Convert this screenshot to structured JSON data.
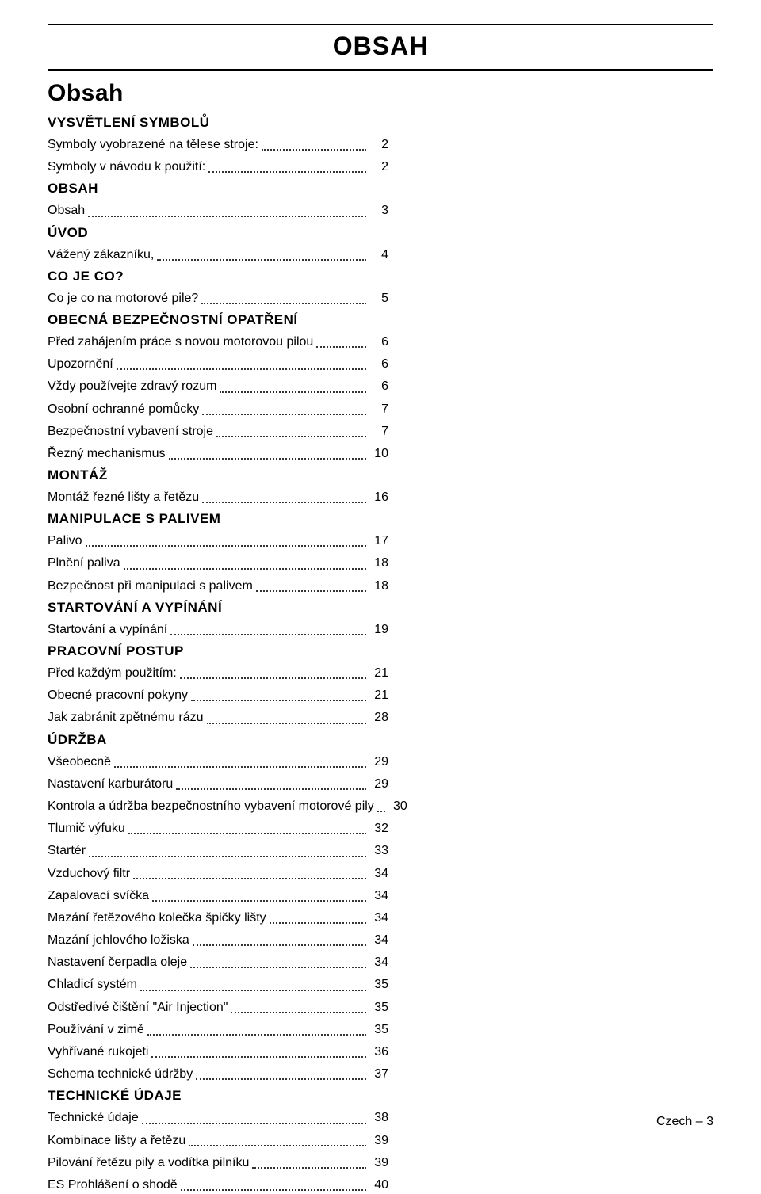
{
  "header_title": "OBSAH",
  "main_title": "Obsah",
  "footer_text": "Czech – 3",
  "sections": [
    {
      "title": "VYSVĚTLENÍ SYMBOLŮ",
      "entries": [
        {
          "label": "Symboly vyobrazené na tělese stroje:",
          "page": "2"
        },
        {
          "label": "Symboly v návodu k použití:",
          "page": "2"
        }
      ]
    },
    {
      "title": "OBSAH",
      "entries": [
        {
          "label": "Obsah",
          "page": "3"
        }
      ]
    },
    {
      "title": "ÚVOD",
      "entries": [
        {
          "label": "Vážený zákazníku,",
          "page": "4"
        }
      ]
    },
    {
      "title": "CO JE CO?",
      "entries": [
        {
          "label": "Co je co na motorové pile?",
          "page": "5"
        }
      ]
    },
    {
      "title": "OBECNÁ BEZPEČNOSTNÍ OPATŘENÍ",
      "entries": [
        {
          "label": "Před zahájením práce s novou motorovou pilou",
          "page": "6"
        },
        {
          "label": "Upozornění",
          "page": "6"
        },
        {
          "label": "Vždy používejte zdravý rozum",
          "page": "6"
        },
        {
          "label": "Osobní ochranné pomůcky",
          "page": "7"
        },
        {
          "label": "Bezpečnostní vybavení stroje",
          "page": "7"
        },
        {
          "label": "Řezný mechanismus",
          "page": "10"
        }
      ]
    },
    {
      "title": "MONTÁŽ",
      "entries": [
        {
          "label": "Montáž řezné lišty a řetězu",
          "page": "16"
        }
      ]
    },
    {
      "title": "MANIPULACE S PALIVEM",
      "entries": [
        {
          "label": "Palivo",
          "page": "17"
        },
        {
          "label": "Plnění paliva",
          "page": "18"
        },
        {
          "label": "Bezpečnost při manipulaci s palivem",
          "page": "18"
        }
      ]
    },
    {
      "title": "STARTOVÁNÍ A VYPÍNÁNÍ",
      "entries": [
        {
          "label": "Startování a vypínání",
          "page": "19"
        }
      ]
    },
    {
      "title": "PRACOVNÍ POSTUP",
      "entries": [
        {
          "label": "Před každým použitím:",
          "page": "21"
        },
        {
          "label": "Obecné pracovní pokyny",
          "page": "21"
        },
        {
          "label": "Jak zabránit zpětnému rázu",
          "page": "28"
        }
      ]
    },
    {
      "title": "ÚDRŽBA",
      "entries": [
        {
          "label": "Všeobecně",
          "page": "29"
        },
        {
          "label": "Nastavení karburátoru",
          "page": "29"
        },
        {
          "label": "Kontrola a údržba bezpečnostního vybavení motorové pily",
          "page": "30"
        },
        {
          "label": "Tlumič výfuku",
          "page": "32"
        },
        {
          "label": "Startér",
          "page": "33"
        },
        {
          "label": "Vzduchový filtr",
          "page": "34"
        },
        {
          "label": "Zapalovací svíčka",
          "page": "34"
        },
        {
          "label": "Mazání řetězového kolečka špičky lišty",
          "page": "34"
        },
        {
          "label": "Mazání jehlového ložiska",
          "page": "34"
        },
        {
          "label": "Nastavení čerpadla oleje",
          "page": "34"
        },
        {
          "label": "Chladicí systém",
          "page": "35"
        },
        {
          "label": "Odstředivé čištění \"Air Injection\"",
          "page": "35"
        },
        {
          "label": "Používání v zimě",
          "page": "35"
        },
        {
          "label": "Vyhřívané rukojeti",
          "page": "36"
        },
        {
          "label": "Schema technické údržby",
          "page": "37"
        }
      ]
    },
    {
      "title": "TECHNICKÉ ÚDAJE",
      "entries": [
        {
          "label": "Technické údaje",
          "page": "38"
        },
        {
          "label": "Kombinace lišty a řetězu",
          "page": "39"
        },
        {
          "label": "Pilování řetězu pily a vodítka pilníku",
          "page": "39"
        },
        {
          "label": "ES Prohlášení o shodě",
          "page": "40"
        }
      ]
    }
  ]
}
